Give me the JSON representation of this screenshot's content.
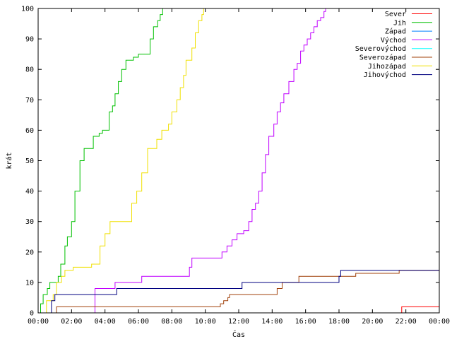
{
  "chart_data": {
    "type": "line",
    "title": "",
    "xlabel": "Čas",
    "ylabel": "krát",
    "x_unit": "hours",
    "xlim": [
      0,
      24
    ],
    "ylim": [
      0,
      100
    ],
    "x_ticks": [
      {
        "value": 0,
        "label": "00:00"
      },
      {
        "value": 2,
        "label": "02:00"
      },
      {
        "value": 4,
        "label": "04:00"
      },
      {
        "value": 6,
        "label": "06:00"
      },
      {
        "value": 8,
        "label": "08:00"
      },
      {
        "value": 10,
        "label": "10:00"
      },
      {
        "value": 12,
        "label": "12:00"
      },
      {
        "value": 14,
        "label": "14:00"
      },
      {
        "value": 16,
        "label": "16:00"
      },
      {
        "value": 18,
        "label": "18:00"
      },
      {
        "value": 20,
        "label": "20:00"
      },
      {
        "value": 22,
        "label": "22:00"
      },
      {
        "value": 24,
        "label": "00:00"
      }
    ],
    "y_ticks": [
      0,
      10,
      20,
      30,
      40,
      50,
      60,
      70,
      80,
      90,
      100
    ],
    "grid": false,
    "legend_position": "top-right",
    "series": [
      {
        "name": "Sever",
        "color": "#ff0000",
        "x": [
          0,
          21.65,
          21.75,
          24
        ],
        "y": [
          0,
          0,
          2,
          2
        ]
      },
      {
        "name": "Jih",
        "color": "#00c000",
        "x": [
          0,
          0.15,
          0.3,
          0.55,
          0.7,
          1.2,
          1.35,
          1.6,
          1.75,
          2.0,
          2.2,
          2.5,
          2.75,
          2.95,
          3.3,
          3.65,
          3.85,
          4.25,
          4.45,
          4.6,
          4.8,
          5.0,
          5.25,
          5.35,
          5.7,
          6.0,
          6.25,
          6.7,
          6.9,
          7.15,
          7.3,
          7.45
        ],
        "y": [
          0,
          3,
          6,
          8,
          10,
          12,
          16,
          22,
          25,
          30,
          40,
          50,
          54,
          54,
          58,
          59,
          60,
          66,
          68,
          72,
          76,
          80,
          83,
          83,
          84,
          85,
          85,
          90,
          94,
          96,
          98,
          100
        ]
      },
      {
        "name": "Západ",
        "color": "#0080ff",
        "x": [],
        "y": []
      },
      {
        "name": "Východ",
        "color": "#c000ff",
        "x": [
          0,
          3.3,
          3.4,
          4.5,
          4.6,
          6.1,
          6.2,
          9.0,
          9.05,
          9.2,
          10.8,
          11.0,
          11.3,
          11.6,
          11.9,
          12.3,
          12.6,
          12.8,
          13.0,
          13.2,
          13.4,
          13.6,
          13.8,
          14.1,
          14.3,
          14.5,
          14.7,
          15.0,
          15.3,
          15.5,
          15.7,
          15.9,
          16.1,
          16.3,
          16.5,
          16.7,
          16.9,
          17.1,
          17.2
        ],
        "y": [
          0,
          0,
          8,
          8,
          10,
          10,
          12,
          12,
          15,
          18,
          18,
          20,
          22,
          24,
          26,
          27,
          30,
          34,
          36,
          40,
          46,
          52,
          58,
          62,
          66,
          69,
          72,
          76,
          80,
          82,
          86,
          88,
          90,
          92,
          94,
          96,
          97,
          99,
          100
        ]
      },
      {
        "name": "Severovýchod",
        "color": "#00ffff",
        "x": [],
        "y": []
      },
      {
        "name": "Severozápad",
        "color": "#a0400a",
        "x": [
          0,
          1.0,
          1.1,
          10.8,
          10.9,
          11.1,
          11.35,
          11.45,
          12.0,
          14.3,
          14.6,
          15.4,
          15.6,
          18.9,
          19.0,
          21.5,
          21.6,
          24
        ],
        "y": [
          0,
          0,
          2,
          2,
          3,
          4,
          5,
          6,
          6,
          8,
          10,
          10,
          12,
          12,
          13,
          13,
          14,
          14
        ]
      },
      {
        "name": "Jihozápad",
        "color": "#f0e000",
        "x": [
          0,
          0.4,
          0.5,
          0.9,
          1.1,
          1.4,
          1.6,
          1.9,
          2.1,
          3.2,
          3.7,
          4.0,
          4.3,
          5.45,
          5.6,
          5.9,
          6.2,
          6.55,
          6.8,
          7.1,
          7.4,
          7.8,
          8.0,
          8.3,
          8.5,
          8.7,
          8.85,
          9.0,
          9.2,
          9.4,
          9.6,
          9.8,
          9.9
        ],
        "y": [
          0,
          0,
          4,
          6,
          10,
          12,
          14,
          14,
          15,
          16,
          22,
          26,
          30,
          30,
          36,
          40,
          46,
          54,
          54,
          57,
          60,
          62,
          66,
          70,
          74,
          78,
          83,
          83,
          87,
          92,
          96,
          98,
          100
        ]
      },
      {
        "name": "Jihovýchod",
        "color": "#000080",
        "x": [
          0,
          0.6,
          0.8,
          1.0,
          3.3,
          3.5,
          4.6,
          4.7,
          12.1,
          12.2,
          18.0,
          18.1,
          24
        ],
        "y": [
          0,
          0,
          4,
          6,
          6,
          6,
          6,
          8,
          8,
          10,
          12,
          14,
          14
        ]
      }
    ]
  }
}
